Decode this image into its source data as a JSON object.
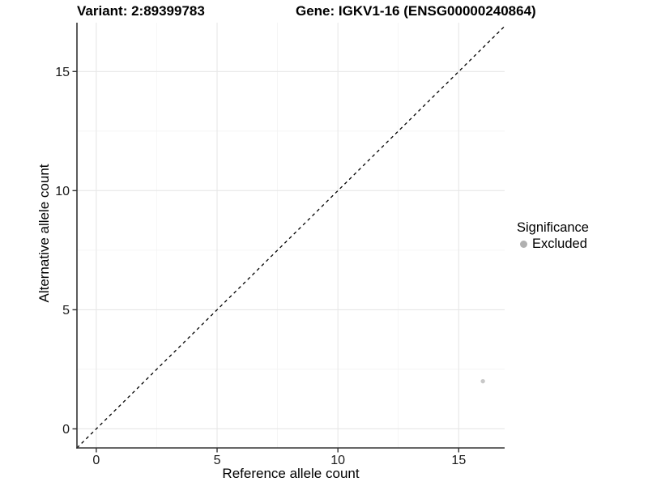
{
  "colors": {
    "background": "#ffffff",
    "axis_line": "#333333",
    "tick_mark": "#333333",
    "tick_label": "#1a1a1a",
    "grid_major": "#e7e7e7",
    "grid_minor": "#f3f3f3",
    "reference_line": "#000000",
    "point": "#c8c8c8",
    "legend_key": "#b0b0b0"
  },
  "chart_data": {
    "type": "scatter",
    "title_variant": "Variant: 2:89399783",
    "title_gene": "Gene: IGKV1-16 (ENSG00000240864)",
    "xlabel": "Reference allele count",
    "ylabel": "Alternative allele count",
    "xlim": [
      -0.8,
      16.9
    ],
    "ylim": [
      -0.8,
      17.05
    ],
    "x_ticks": [
      0,
      5,
      10,
      15
    ],
    "y_ticks": [
      0,
      5,
      10,
      15
    ],
    "x_minor_ticks": [
      2.5,
      7.5,
      12.5
    ],
    "y_minor_ticks": [
      2.5,
      7.5,
      12.5
    ],
    "grid": "major+minor",
    "reference_line": {
      "type": "identity",
      "style": "dashed",
      "color": "#000000"
    },
    "series": [
      {
        "name": "Excluded",
        "color": "#c8c8c8",
        "points": [
          {
            "x": 16,
            "y": 2
          }
        ]
      }
    ],
    "legend": {
      "title": "Significance",
      "position": "right",
      "items": [
        {
          "label": "Excluded",
          "color": "#b0b0b0"
        }
      ]
    }
  }
}
